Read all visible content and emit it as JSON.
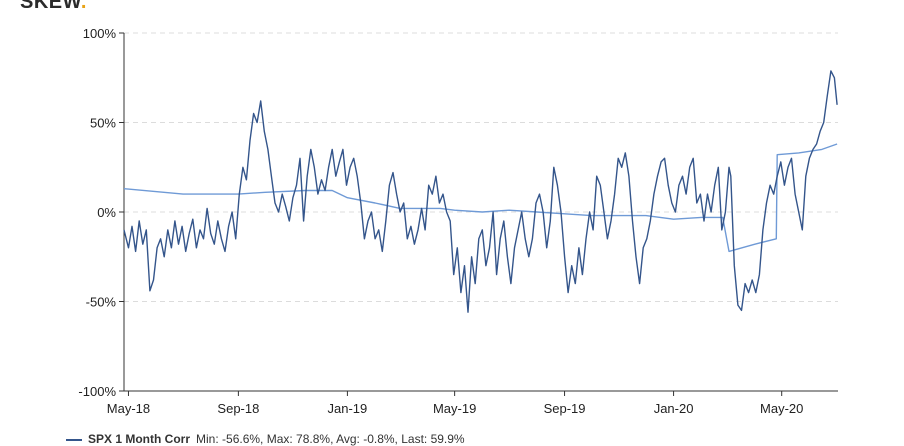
{
  "header": {
    "logo": "SKEW",
    "title": ""
  },
  "chart_data": {
    "type": "line",
    "title": "",
    "xlabel": "",
    "ylabel": "",
    "x_ticks": [
      "May-18",
      "Sep-18",
      "Jan-19",
      "May-19",
      "Sep-19",
      "Jan-20",
      "May-20"
    ],
    "y_ticks": [
      "100%",
      "50%",
      "0%",
      "-50%",
      "-100%"
    ],
    "ylim": [
      -100,
      100
    ],
    "xlim": [
      "2018-04-26",
      "2020-07-03"
    ],
    "grid": "horizontal dashed",
    "legend_position": "bottom-left",
    "series": [
      {
        "name": "SPX 1 Month Corr",
        "color": "#34558b",
        "stats": "Min: -56.6%, Max: 78.8%, Avg: -0.8%, Last: 59.9%",
        "points": [
          [
            "2018-04-26",
            -10
          ],
          [
            "2018-05-01",
            -20
          ],
          [
            "2018-05-05",
            -8
          ],
          [
            "2018-05-09",
            -22
          ],
          [
            "2018-05-13",
            -5
          ],
          [
            "2018-05-17",
            -18
          ],
          [
            "2018-05-21",
            -10
          ],
          [
            "2018-05-25",
            -44
          ],
          [
            "2018-05-29",
            -38
          ],
          [
            "2018-06-02",
            -20
          ],
          [
            "2018-06-06",
            -15
          ],
          [
            "2018-06-10",
            -25
          ],
          [
            "2018-06-14",
            -10
          ],
          [
            "2018-06-18",
            -20
          ],
          [
            "2018-06-22",
            -5
          ],
          [
            "2018-06-26",
            -18
          ],
          [
            "2018-06-30",
            -8
          ],
          [
            "2018-07-04",
            -22
          ],
          [
            "2018-07-08",
            -12
          ],
          [
            "2018-07-12",
            -4
          ],
          [
            "2018-07-16",
            -20
          ],
          [
            "2018-07-20",
            -10
          ],
          [
            "2018-07-24",
            -15
          ],
          [
            "2018-07-28",
            2
          ],
          [
            "2018-08-01",
            -12
          ],
          [
            "2018-08-05",
            -18
          ],
          [
            "2018-08-09",
            -5
          ],
          [
            "2018-08-13",
            -15
          ],
          [
            "2018-08-17",
            -22
          ],
          [
            "2018-08-21",
            -8
          ],
          [
            "2018-08-25",
            0
          ],
          [
            "2018-08-29",
            -15
          ],
          [
            "2018-09-02",
            10
          ],
          [
            "2018-09-06",
            25
          ],
          [
            "2018-09-10",
            18
          ],
          [
            "2018-09-14",
            40
          ],
          [
            "2018-09-18",
            55
          ],
          [
            "2018-09-22",
            50
          ],
          [
            "2018-09-26",
            62
          ],
          [
            "2018-09-30",
            45
          ],
          [
            "2018-10-04",
            35
          ],
          [
            "2018-10-08",
            20
          ],
          [
            "2018-10-12",
            5
          ],
          [
            "2018-10-16",
            0
          ],
          [
            "2018-10-20",
            10
          ],
          [
            "2018-10-24",
            3
          ],
          [
            "2018-10-28",
            -5
          ],
          [
            "2018-11-01",
            8
          ],
          [
            "2018-11-05",
            15
          ],
          [
            "2018-11-09",
            30
          ],
          [
            "2018-11-13",
            -5
          ],
          [
            "2018-11-17",
            20
          ],
          [
            "2018-11-21",
            35
          ],
          [
            "2018-11-25",
            25
          ],
          [
            "2018-11-29",
            10
          ],
          [
            "2018-12-03",
            18
          ],
          [
            "2018-12-07",
            12
          ],
          [
            "2018-12-11",
            25
          ],
          [
            "2018-12-15",
            35
          ],
          [
            "2018-12-19",
            20
          ],
          [
            "2018-12-23",
            28
          ],
          [
            "2018-12-27",
            35
          ],
          [
            "2018-12-31",
            15
          ],
          [
            "2019-01-04",
            25
          ],
          [
            "2019-01-08",
            30
          ],
          [
            "2019-01-12",
            20
          ],
          [
            "2019-01-16",
            5
          ],
          [
            "2019-01-20",
            -15
          ],
          [
            "2019-01-24",
            -5
          ],
          [
            "2019-01-28",
            0
          ],
          [
            "2019-02-01",
            -15
          ],
          [
            "2019-02-05",
            -10
          ],
          [
            "2019-02-09",
            -22
          ],
          [
            "2019-02-13",
            -5
          ],
          [
            "2019-02-17",
            15
          ],
          [
            "2019-02-21",
            22
          ],
          [
            "2019-02-25",
            10
          ],
          [
            "2019-03-01",
            0
          ],
          [
            "2019-03-05",
            5
          ],
          [
            "2019-03-09",
            -15
          ],
          [
            "2019-03-13",
            -8
          ],
          [
            "2019-03-17",
            -18
          ],
          [
            "2019-03-21",
            -10
          ],
          [
            "2019-03-25",
            2
          ],
          [
            "2019-03-29",
            -10
          ],
          [
            "2019-04-02",
            15
          ],
          [
            "2019-04-06",
            10
          ],
          [
            "2019-04-10",
            20
          ],
          [
            "2019-04-14",
            5
          ],
          [
            "2019-04-18",
            10
          ],
          [
            "2019-04-22",
            0
          ],
          [
            "2019-04-26",
            -5
          ],
          [
            "2019-04-30",
            -35
          ],
          [
            "2019-05-04",
            -20
          ],
          [
            "2019-05-08",
            -45
          ],
          [
            "2019-05-12",
            -30
          ],
          [
            "2019-05-16",
            -56
          ],
          [
            "2019-05-20",
            -25
          ],
          [
            "2019-05-24",
            -40
          ],
          [
            "2019-05-28",
            -15
          ],
          [
            "2019-06-01",
            -10
          ],
          [
            "2019-06-05",
            -30
          ],
          [
            "2019-06-09",
            -20
          ],
          [
            "2019-06-13",
            0
          ],
          [
            "2019-06-17",
            -35
          ],
          [
            "2019-06-21",
            -15
          ],
          [
            "2019-06-25",
            -5
          ],
          [
            "2019-06-29",
            -25
          ],
          [
            "2019-07-03",
            -40
          ],
          [
            "2019-07-07",
            -20
          ],
          [
            "2019-07-11",
            -10
          ],
          [
            "2019-07-15",
            0
          ],
          [
            "2019-07-19",
            -15
          ],
          [
            "2019-07-23",
            -25
          ],
          [
            "2019-07-27",
            -15
          ],
          [
            "2019-07-31",
            5
          ],
          [
            "2019-08-04",
            10
          ],
          [
            "2019-08-08",
            0
          ],
          [
            "2019-08-12",
            -20
          ],
          [
            "2019-08-16",
            -5
          ],
          [
            "2019-08-20",
            25
          ],
          [
            "2019-08-24",
            15
          ],
          [
            "2019-08-28",
            0
          ],
          [
            "2019-09-01",
            -25
          ],
          [
            "2019-09-05",
            -45
          ],
          [
            "2019-09-09",
            -30
          ],
          [
            "2019-09-13",
            -40
          ],
          [
            "2019-09-17",
            -20
          ],
          [
            "2019-09-21",
            -35
          ],
          [
            "2019-09-25",
            -15
          ],
          [
            "2019-09-29",
            0
          ],
          [
            "2019-10-03",
            -10
          ],
          [
            "2019-10-07",
            20
          ],
          [
            "2019-10-11",
            15
          ],
          [
            "2019-10-15",
            0
          ],
          [
            "2019-10-19",
            -15
          ],
          [
            "2019-10-23",
            -5
          ],
          [
            "2019-10-27",
            10
          ],
          [
            "2019-10-31",
            30
          ],
          [
            "2019-11-04",
            25
          ],
          [
            "2019-11-08",
            33
          ],
          [
            "2019-11-12",
            20
          ],
          [
            "2019-11-16",
            -5
          ],
          [
            "2019-11-20",
            -25
          ],
          [
            "2019-11-24",
            -40
          ],
          [
            "2019-11-28",
            -20
          ],
          [
            "2019-12-02",
            -15
          ],
          [
            "2019-12-06",
            -5
          ],
          [
            "2019-12-10",
            10
          ],
          [
            "2019-12-14",
            20
          ],
          [
            "2019-12-18",
            28
          ],
          [
            "2019-12-22",
            30
          ],
          [
            "2019-12-26",
            15
          ],
          [
            "2019-12-30",
            5
          ],
          [
            "2020-01-03",
            0
          ],
          [
            "2020-01-07",
            15
          ],
          [
            "2020-01-11",
            20
          ],
          [
            "2020-01-15",
            10
          ],
          [
            "2020-01-19",
            25
          ],
          [
            "2020-01-23",
            30
          ],
          [
            "2020-01-27",
            5
          ],
          [
            "2020-01-31",
            10
          ],
          [
            "2020-02-04",
            -5
          ],
          [
            "2020-02-08",
            10
          ],
          [
            "2020-02-12",
            0
          ],
          [
            "2020-02-16",
            15
          ],
          [
            "2020-02-20",
            25
          ],
          [
            "2020-02-24",
            -10
          ],
          [
            "2020-02-28",
            0
          ],
          [
            "2020-03-03",
            25
          ],
          [
            "2020-03-05",
            20
          ],
          [
            "2020-03-09",
            -30
          ],
          [
            "2020-03-13",
            -52
          ],
          [
            "2020-03-17",
            -55
          ],
          [
            "2020-03-21",
            -40
          ],
          [
            "2020-03-25",
            -45
          ],
          [
            "2020-03-29",
            -38
          ],
          [
            "2020-04-02",
            -45
          ],
          [
            "2020-04-06",
            -35
          ],
          [
            "2020-04-10",
            -10
          ],
          [
            "2020-04-14",
            5
          ],
          [
            "2020-04-18",
            15
          ],
          [
            "2020-04-22",
            10
          ],
          [
            "2020-04-26",
            20
          ],
          [
            "2020-04-30",
            28
          ],
          [
            "2020-05-04",
            15
          ],
          [
            "2020-05-08",
            25
          ],
          [
            "2020-05-12",
            30
          ],
          [
            "2020-05-16",
            10
          ],
          [
            "2020-05-20",
            0
          ],
          [
            "2020-05-24",
            -10
          ],
          [
            "2020-05-28",
            20
          ],
          [
            "2020-06-01",
            30
          ],
          [
            "2020-06-05",
            35
          ],
          [
            "2020-06-09",
            38
          ],
          [
            "2020-06-13",
            45
          ],
          [
            "2020-06-17",
            50
          ],
          [
            "2020-06-21",
            65
          ],
          [
            "2020-06-25",
            78.8
          ],
          [
            "2020-06-29",
            75
          ],
          [
            "2020-07-02",
            59.9
          ]
        ]
      },
      {
        "name": "",
        "color": "#6f9ad6",
        "points": [
          [
            "2018-04-26",
            13
          ],
          [
            "2018-07-01",
            10
          ],
          [
            "2018-09-01",
            10
          ],
          [
            "2018-10-01",
            11
          ],
          [
            "2018-11-15",
            12
          ],
          [
            "2018-12-15",
            12
          ],
          [
            "2019-01-01",
            8
          ],
          [
            "2019-02-01",
            5
          ],
          [
            "2019-03-01",
            2
          ],
          [
            "2019-04-15",
            2
          ],
          [
            "2019-05-01",
            1
          ],
          [
            "2019-06-01",
            0
          ],
          [
            "2019-07-01",
            1
          ],
          [
            "2019-08-01",
            0
          ],
          [
            "2019-09-01",
            -1
          ],
          [
            "2019-10-01",
            -2
          ],
          [
            "2019-11-01",
            -2
          ],
          [
            "2019-12-01",
            -2
          ],
          [
            "2020-01-01",
            -4
          ],
          [
            "2020-02-01",
            -3
          ],
          [
            "2020-02-25",
            -3
          ],
          [
            "2020-03-03",
            -22
          ],
          [
            "2020-04-01",
            -18
          ],
          [
            "2020-04-25",
            -15
          ],
          [
            "2020-04-26",
            32
          ],
          [
            "2020-05-20",
            33
          ],
          [
            "2020-06-15",
            35
          ],
          [
            "2020-07-02",
            38
          ]
        ]
      }
    ]
  }
}
